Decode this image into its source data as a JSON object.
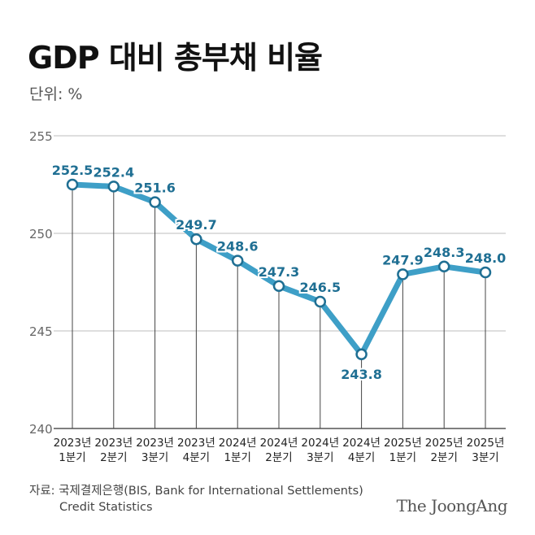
{
  "header": {
    "title": "GDP 대비 총부채 비율",
    "unit": "단위: %"
  },
  "footer": {
    "source_line1": "자료: 국제결제은행(BIS, Bank for International Settlements)",
    "source_line2": "Credit Statistics",
    "brand": "The JoongAng"
  },
  "colors": {
    "line": "#3e9fc7",
    "label": "#1f6f93",
    "grid": "#bdbdbd",
    "axis": "#333333"
  },
  "chart_data": {
    "type": "line",
    "title": "GDP 대비 총부채 비율",
    "ylabel": "",
    "xlabel": "",
    "ylim": [
      240,
      255
    ],
    "yticks": [
      240,
      245,
      250,
      255
    ],
    "grid": true,
    "categories": [
      [
        "2023년",
        "1분기"
      ],
      [
        "2023년",
        "2분기"
      ],
      [
        "2023년",
        "3분기"
      ],
      [
        "2023년",
        "4분기"
      ],
      [
        "2024년",
        "1분기"
      ],
      [
        "2024년",
        "2분기"
      ],
      [
        "2024년",
        "3분기"
      ],
      [
        "2024년",
        "4분기"
      ],
      [
        "2025년",
        "1분기"
      ],
      [
        "2025년",
        "2분기"
      ],
      [
        "2025년",
        "3분기"
      ]
    ],
    "values": [
      252.5,
      252.4,
      251.6,
      249.7,
      248.6,
      247.3,
      246.5,
      243.8,
      247.9,
      248.3,
      248.0
    ],
    "data_labels": [
      "252.5",
      "252.4",
      "251.6",
      "249.7",
      "248.6",
      "247.3",
      "246.5",
      "243.8",
      "247.9",
      "248.3",
      "248.0"
    ]
  }
}
